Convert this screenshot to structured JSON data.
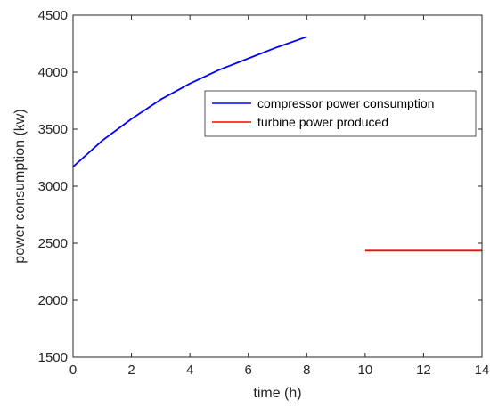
{
  "chart_data": {
    "type": "line",
    "title": "",
    "xlabel": "time (h)",
    "ylabel": "power consumption (kw)",
    "xlim": [
      0,
      14
    ],
    "ylim": [
      1500,
      4500
    ],
    "xticks": [
      0,
      2,
      4,
      6,
      8,
      10,
      12,
      14
    ],
    "yticks": [
      1500,
      2000,
      2500,
      3000,
      3500,
      4000,
      4500
    ],
    "grid": false,
    "legend_position": "top-right",
    "series": [
      {
        "name": "compressor power consumption",
        "color": "#0000ff",
        "x": [
          0,
          1,
          2,
          3,
          4,
          5,
          6,
          7,
          8
        ],
        "y": [
          3170,
          3400,
          3590,
          3760,
          3900,
          4020,
          4120,
          4220,
          4310
        ]
      },
      {
        "name": "turbine power produced",
        "color": "#ff0000",
        "x": [
          10,
          14
        ],
        "y": [
          2435,
          2435
        ]
      }
    ]
  }
}
